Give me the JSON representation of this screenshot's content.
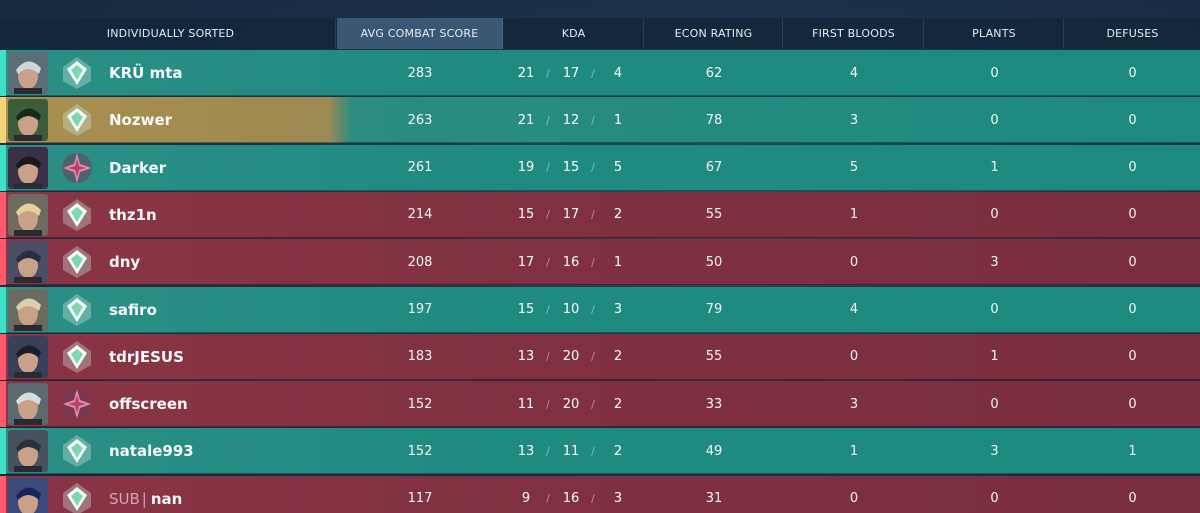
{
  "header": {
    "sort_label": "INDIVIDUALLY SORTED",
    "columns": [
      "AVG COMBAT SCORE",
      "KDA",
      "ECON RATING",
      "FIRST BLOODS",
      "PLANTS",
      "DEFUSES"
    ]
  },
  "kda_separator": "/",
  "colors": {
    "green_team": "#1f8a80",
    "red_team": "#803040",
    "highlight": "#a08a4f",
    "active_header": "#3a5874"
  },
  "players": [
    {
      "name": "KRÜ mta",
      "sub_tag": "",
      "team": "green",
      "highlight": false,
      "agent": "agent-portrait",
      "rank": "ascendant-rank-icon",
      "acs": "283",
      "k": "21",
      "d": "17",
      "a": "4",
      "econ": "62",
      "fb": "4",
      "plants": "0",
      "defuses": "0"
    },
    {
      "name": "Nozwer",
      "sub_tag": "",
      "team": "green",
      "highlight": true,
      "agent": "agent-portrait",
      "rank": "ascendant-rank-icon",
      "acs": "263",
      "k": "21",
      "d": "12",
      "a": "1",
      "econ": "78",
      "fb": "3",
      "plants": "0",
      "defuses": "0"
    },
    {
      "name": "Darker",
      "sub_tag": "",
      "team": "green",
      "highlight": false,
      "agent": "agent-portrait",
      "rank": "immortal-rank-icon",
      "acs": "261",
      "k": "19",
      "d": "15",
      "a": "5",
      "econ": "67",
      "fb": "5",
      "plants": "1",
      "defuses": "0"
    },
    {
      "name": "thz1n",
      "sub_tag": "",
      "team": "red",
      "highlight": false,
      "agent": "agent-portrait",
      "rank": "ascendant-rank-icon",
      "acs": "214",
      "k": "15",
      "d": "17",
      "a": "2",
      "econ": "55",
      "fb": "1",
      "plants": "0",
      "defuses": "0"
    },
    {
      "name": "dny",
      "sub_tag": "",
      "team": "red",
      "highlight": false,
      "agent": "agent-portrait",
      "rank": "ascendant-rank-icon",
      "acs": "208",
      "k": "17",
      "d": "16",
      "a": "1",
      "econ": "50",
      "fb": "0",
      "plants": "3",
      "defuses": "0"
    },
    {
      "name": "safiro",
      "sub_tag": "",
      "team": "green",
      "highlight": false,
      "agent": "agent-portrait",
      "rank": "ascendant-rank-icon",
      "acs": "197",
      "k": "15",
      "d": "10",
      "a": "3",
      "econ": "79",
      "fb": "4",
      "plants": "0",
      "defuses": "0"
    },
    {
      "name": "tdrJESUS",
      "sub_tag": "",
      "team": "red",
      "highlight": false,
      "agent": "agent-portrait",
      "rank": "ascendant-rank-icon",
      "acs": "183",
      "k": "13",
      "d": "20",
      "a": "2",
      "econ": "55",
      "fb": "0",
      "plants": "1",
      "defuses": "0"
    },
    {
      "name": "offscreen",
      "sub_tag": "",
      "team": "red",
      "highlight": false,
      "agent": "agent-portrait",
      "rank": "immortal-rank-icon",
      "acs": "152",
      "k": "11",
      "d": "20",
      "a": "2",
      "econ": "33",
      "fb": "3",
      "plants": "0",
      "defuses": "0"
    },
    {
      "name": "natale993",
      "sub_tag": "",
      "team": "green",
      "highlight": false,
      "agent": "agent-portrait",
      "rank": "ascendant-rank-icon",
      "acs": "152",
      "k": "13",
      "d": "11",
      "a": "2",
      "econ": "49",
      "fb": "1",
      "plants": "3",
      "defuses": "1"
    },
    {
      "name": "nan",
      "sub_tag": "SUB",
      "team": "red",
      "highlight": false,
      "agent": "agent-portrait",
      "rank": "ascendant-rank-icon",
      "acs": "117",
      "k": "9",
      "d": "16",
      "a": "3",
      "econ": "31",
      "fb": "0",
      "plants": "0",
      "defuses": "0"
    }
  ]
}
